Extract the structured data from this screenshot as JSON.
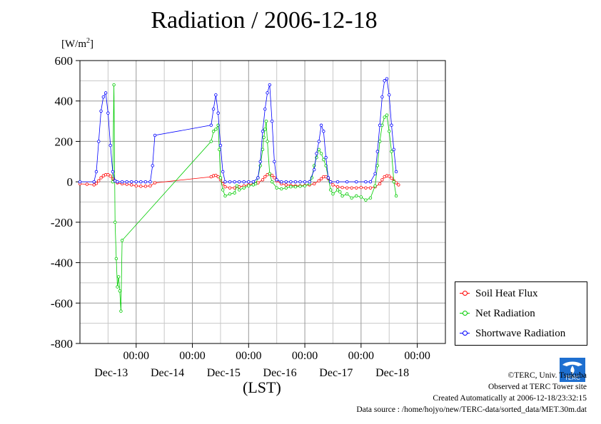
{
  "page": {
    "title": "Radiation / 2006-12-18",
    "unit_text": "[W/m",
    "unit_sup": "2",
    "unit_close": "]",
    "x_axis_label": "(LST)"
  },
  "legend": [
    {
      "name": "Soil Heat Flux",
      "color": "#ff0000"
    },
    {
      "name": "Net Radiation",
      "color": "#00cc00"
    },
    {
      "name": "Shortwave Radiation",
      "color": "#0000ff"
    }
  ],
  "credits": {
    "copyright": "©TERC, Univ. Tsukuba",
    "observed": "Observed at TERC Tower site",
    "created": "Created Automatically at 2006-12-18/23:32:15",
    "source": "Data source : /home/hojyo/new/TERC-data/sorted_data/MET.30m.dat",
    "logo_text": "TERC"
  },
  "chart_data": {
    "type": "line",
    "title": "Radiation / 2006-12-18",
    "xlabel": "(LST)",
    "ylabel": "[W/m2]",
    "ylim": [
      -800,
      600
    ],
    "yticks": [
      600,
      400,
      200,
      0,
      -200,
      -400,
      -600,
      -800
    ],
    "xlim_hours": [
      0,
      156
    ],
    "xticks": [
      {
        "hours": 24,
        "time": "00:00",
        "date": "Dec-13"
      },
      {
        "hours": 48,
        "time": "00:00",
        "date": "Dec-14"
      },
      {
        "hours": 72,
        "time": "00:00",
        "date": "Dec-15"
      },
      {
        "hours": 96,
        "time": "00:00",
        "date": "Dec-16"
      },
      {
        "hours": 120,
        "time": "00:00",
        "date": "Dec-17"
      },
      {
        "hours": 144,
        "time": "00:00",
        "date": "Dec-18"
      }
    ],
    "grid": true,
    "legend_position": "bottom-right outside",
    "series": [
      {
        "name": "Soil Heat Flux",
        "color": "#ff0000",
        "points": [
          [
            0,
            -10
          ],
          [
            3,
            -12
          ],
          [
            6,
            -15
          ],
          [
            7,
            -8
          ],
          [
            8,
            5
          ],
          [
            9,
            20
          ],
          [
            10,
            30
          ],
          [
            11,
            35
          ],
          [
            12,
            35
          ],
          [
            13,
            28
          ],
          [
            14,
            15
          ],
          [
            15,
            5
          ],
          [
            16,
            -5
          ],
          [
            18,
            -10
          ],
          [
            20,
            -12
          ],
          [
            22,
            -15
          ],
          [
            24,
            -20
          ],
          [
            26,
            -22
          ],
          [
            28,
            -22
          ],
          [
            30,
            -20
          ],
          [
            32,
            -5
          ],
          [
            56,
            25
          ],
          [
            57,
            30
          ],
          [
            58,
            32
          ],
          [
            59,
            25
          ],
          [
            60,
            10
          ],
          [
            61,
            -10
          ],
          [
            62,
            -25
          ],
          [
            64,
            -30
          ],
          [
            66,
            -30
          ],
          [
            68,
            -25
          ],
          [
            70,
            -20
          ],
          [
            72,
            -15
          ],
          [
            74,
            -10
          ],
          [
            76,
            -5
          ],
          [
            78,
            10
          ],
          [
            79,
            25
          ],
          [
            80,
            35
          ],
          [
            81,
            40
          ],
          [
            82,
            32
          ],
          [
            83,
            20
          ],
          [
            84,
            5
          ],
          [
            86,
            -10
          ],
          [
            88,
            -15
          ],
          [
            90,
            -18
          ],
          [
            92,
            -20
          ],
          [
            94,
            -20
          ],
          [
            96,
            -18
          ],
          [
            98,
            -15
          ],
          [
            100,
            -10
          ],
          [
            102,
            5
          ],
          [
            103,
            15
          ],
          [
            104,
            25
          ],
          [
            105,
            25
          ],
          [
            106,
            15
          ],
          [
            107,
            0
          ],
          [
            108,
            -15
          ],
          [
            110,
            -25
          ],
          [
            112,
            -28
          ],
          [
            114,
            -30
          ],
          [
            116,
            -30
          ],
          [
            118,
            -30
          ],
          [
            120,
            -28
          ],
          [
            122,
            -30
          ],
          [
            124,
            -30
          ],
          [
            126,
            -25
          ],
          [
            128,
            -10
          ],
          [
            129,
            10
          ],
          [
            130,
            25
          ],
          [
            131,
            30
          ],
          [
            132,
            28
          ],
          [
            133,
            18
          ],
          [
            134,
            5
          ],
          [
            135,
            -5
          ],
          [
            136,
            -15
          ]
        ]
      },
      {
        "name": "Net Radiation",
        "color": "#00cc00",
        "points": [
          [
            14,
            0
          ],
          [
            14.5,
            480
          ],
          [
            15,
            -200
          ],
          [
            15.5,
            -380
          ],
          [
            16,
            -520
          ],
          [
            16.5,
            -470
          ],
          [
            17,
            -540
          ],
          [
            17.5,
            -640
          ],
          [
            18,
            -290
          ],
          [
            56,
            200
          ],
          [
            57,
            250
          ],
          [
            58,
            260
          ],
          [
            59,
            280
          ],
          [
            59.5,
            160
          ],
          [
            60,
            20
          ],
          [
            61,
            -40
          ],
          [
            62,
            -70
          ],
          [
            64,
            -60
          ],
          [
            66,
            -55
          ],
          [
            67,
            -20
          ],
          [
            68,
            -40
          ],
          [
            70,
            -30
          ],
          [
            72,
            -20
          ],
          [
            74,
            -15
          ],
          [
            75,
            -10
          ],
          [
            76,
            20
          ],
          [
            77,
            80
          ],
          [
            78,
            160
          ],
          [
            78.5,
            220
          ],
          [
            79,
            260
          ],
          [
            79.5,
            300
          ],
          [
            80,
            200
          ],
          [
            81,
            40
          ],
          [
            82,
            0
          ],
          [
            84,
            -30
          ],
          [
            86,
            -35
          ],
          [
            88,
            -30
          ],
          [
            90,
            -25
          ],
          [
            92,
            -25
          ],
          [
            94,
            -22
          ],
          [
            96,
            -20
          ],
          [
            98,
            -10
          ],
          [
            99,
            20
          ],
          [
            100,
            80
          ],
          [
            101,
            120
          ],
          [
            102,
            160
          ],
          [
            103,
            140
          ],
          [
            104,
            110
          ],
          [
            105,
            80
          ],
          [
            106,
            20
          ],
          [
            107,
            -40
          ],
          [
            108,
            -60
          ],
          [
            110,
            -40
          ],
          [
            111,
            -50
          ],
          [
            112,
            -70
          ],
          [
            114,
            -60
          ],
          [
            116,
            -80
          ],
          [
            118,
            -70
          ],
          [
            120,
            -75
          ],
          [
            122,
            -90
          ],
          [
            124,
            -80
          ],
          [
            126,
            -20
          ],
          [
            127,
            80
          ],
          [
            128,
            200
          ],
          [
            129,
            280
          ],
          [
            130,
            320
          ],
          [
            131,
            330
          ],
          [
            132,
            250
          ],
          [
            133,
            150
          ],
          [
            134,
            0
          ],
          [
            135,
            -70
          ]
        ]
      },
      {
        "name": "Shortwave Radiation",
        "color": "#0000ff",
        "points": [
          [
            0,
            0
          ],
          [
            6,
            0
          ],
          [
            7,
            50
          ],
          [
            8,
            200
          ],
          [
            9,
            350
          ],
          [
            10,
            420
          ],
          [
            11,
            440
          ],
          [
            12,
            340
          ],
          [
            13,
            180
          ],
          [
            14,
            50
          ],
          [
            15,
            5
          ],
          [
            16,
            0
          ],
          [
            18,
            0
          ],
          [
            20,
            0
          ],
          [
            22,
            0
          ],
          [
            24,
            0
          ],
          [
            26,
            0
          ],
          [
            28,
            0
          ],
          [
            30,
            0
          ],
          [
            31,
            80
          ],
          [
            32,
            230
          ],
          [
            56,
            280
          ],
          [
            57,
            360
          ],
          [
            58,
            430
          ],
          [
            59,
            340
          ],
          [
            60,
            180
          ],
          [
            61,
            50
          ],
          [
            62,
            0
          ],
          [
            64,
            0
          ],
          [
            66,
            0
          ],
          [
            68,
            0
          ],
          [
            70,
            0
          ],
          [
            72,
            0
          ],
          [
            74,
            0
          ],
          [
            76,
            20
          ],
          [
            77,
            100
          ],
          [
            78,
            250
          ],
          [
            79,
            360
          ],
          [
            80,
            440
          ],
          [
            81,
            480
          ],
          [
            82,
            300
          ],
          [
            83,
            100
          ],
          [
            84,
            10
          ],
          [
            86,
            0
          ],
          [
            88,
            0
          ],
          [
            90,
            0
          ],
          [
            92,
            0
          ],
          [
            94,
            0
          ],
          [
            96,
            0
          ],
          [
            98,
            0
          ],
          [
            100,
            60
          ],
          [
            101,
            140
          ],
          [
            102,
            200
          ],
          [
            103,
            280
          ],
          [
            104,
            250
          ],
          [
            105,
            120
          ],
          [
            106,
            20
          ],
          [
            107,
            0
          ],
          [
            110,
            0
          ],
          [
            114,
            0
          ],
          [
            118,
            0
          ],
          [
            122,
            0
          ],
          [
            124,
            0
          ],
          [
            126,
            40
          ],
          [
            127,
            150
          ],
          [
            128,
            280
          ],
          [
            129,
            420
          ],
          [
            130,
            500
          ],
          [
            131,
            510
          ],
          [
            132,
            430
          ],
          [
            133,
            280
          ],
          [
            134,
            160
          ],
          [
            135,
            50
          ]
        ]
      }
    ]
  }
}
